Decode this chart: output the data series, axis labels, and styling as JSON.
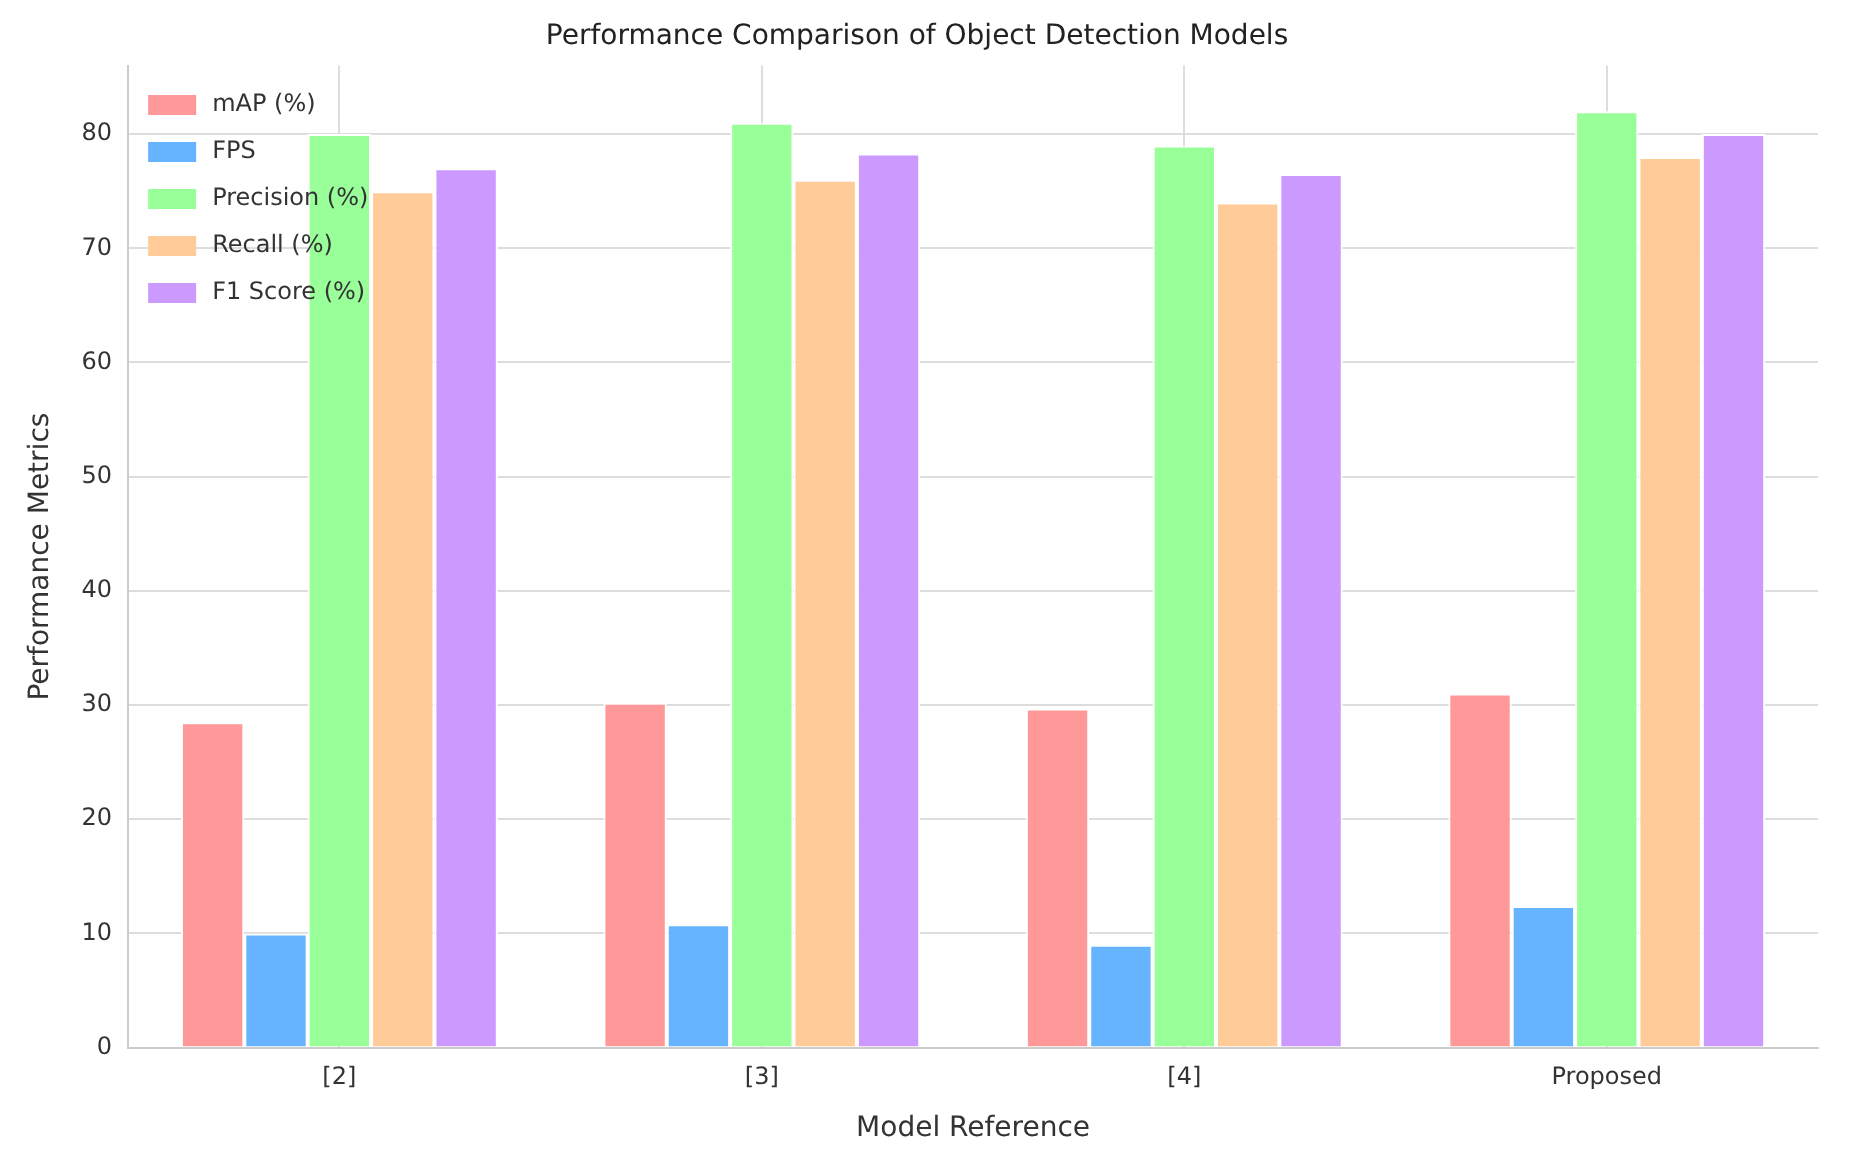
{
  "chart_data": {
    "type": "bar",
    "title": "Performance Comparison of Object Detection Models",
    "xlabel": "Model Reference",
    "ylabel": "Performance Metrics",
    "categories": [
      "[2]",
      "[3]",
      "[4]",
      "Proposed"
    ],
    "series": [
      {
        "name": "mAP (%)",
        "color": "#ff9999",
        "values": [
          28.5,
          30.2,
          29.7,
          31
        ]
      },
      {
        "name": "FPS",
        "color": "#66b3ff",
        "values": [
          10,
          10.8,
          9,
          12.4
        ]
      },
      {
        "name": "Precision (%)",
        "color": "#99ff99",
        "values": [
          80,
          81,
          79,
          82
        ]
      },
      {
        "name": "Recall (%)",
        "color": "#ffcc99",
        "values": [
          75,
          76,
          74,
          78
        ]
      },
      {
        "name": "F1 Score (%)",
        "color": "#cc99ff",
        "values": [
          77,
          78.3,
          76.5,
          80
        ]
      }
    ],
    "ylim": [
      0,
      86
    ],
    "yticks": [
      0,
      10,
      20,
      30,
      40,
      50,
      60,
      70,
      80
    ],
    "grid": true,
    "legend": "top left"
  }
}
